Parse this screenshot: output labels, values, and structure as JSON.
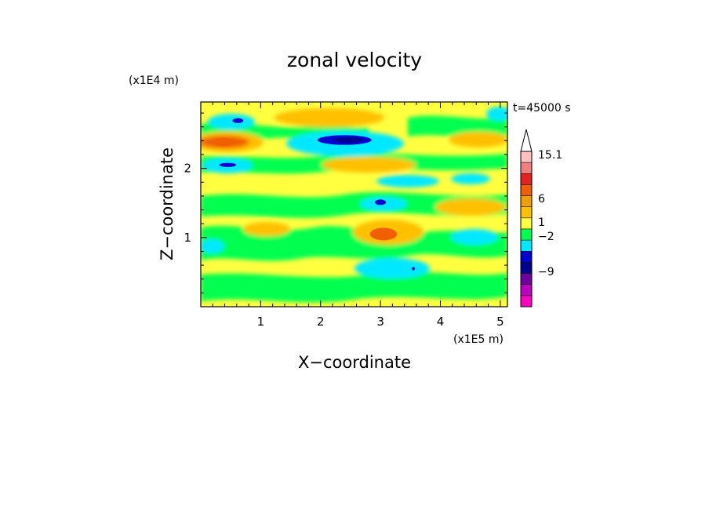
{
  "chart_data": {
    "type": "heatmap",
    "title": "zonal velocity",
    "time_label": "t=45000 s",
    "xlabel": "X−coordinate",
    "ylabel": "Z−coordinate",
    "x_scale_label": "(x1E5 m)",
    "y_scale_label": "(x1E4 m)",
    "xlim": [
      0,
      5.12
    ],
    "ylim": [
      0,
      2.96
    ],
    "x_ticks": [
      1,
      2,
      3,
      4,
      5
    ],
    "y_ticks": [
      1,
      2
    ],
    "colorbar": {
      "labels": [
        "15.1",
        "6",
        "1",
        "−2",
        "−9"
      ],
      "colors": [
        "#ffc0c0",
        "#f08080",
        "#e82020",
        "#f06000",
        "#f0a000",
        "#ffc000",
        "#ffff40",
        "#00ff50",
        "#00e8ff",
        "#0000d0",
        "#000090",
        "#7000a0",
        "#c000c0",
        "#ff00c0"
      ]
    },
    "regions": [
      {
        "x": 0.62,
        "y": 2.69,
        "w": 0.18,
        "h": 0.07,
        "level": "blue"
      },
      {
        "x": 0.38,
        "y": 2.38,
        "w": 0.38,
        "h": 0.12,
        "level": "orange"
      },
      {
        "x": 2.4,
        "y": 2.41,
        "w": 0.9,
        "h": 0.14,
        "level": "blue"
      },
      {
        "x": 0.45,
        "y": 2.05,
        "w": 0.28,
        "h": 0.06,
        "level": "blue"
      },
      {
        "x": 3.0,
        "y": 1.51,
        "w": 0.18,
        "h": 0.08,
        "level": "blue"
      },
      {
        "x": 3.05,
        "y": 1.05,
        "w": 0.45,
        "h": 0.18,
        "level": "orange"
      },
      {
        "x": 3.55,
        "y": 0.55,
        "w": 0.05,
        "h": 0.05,
        "level": "blue"
      }
    ]
  }
}
